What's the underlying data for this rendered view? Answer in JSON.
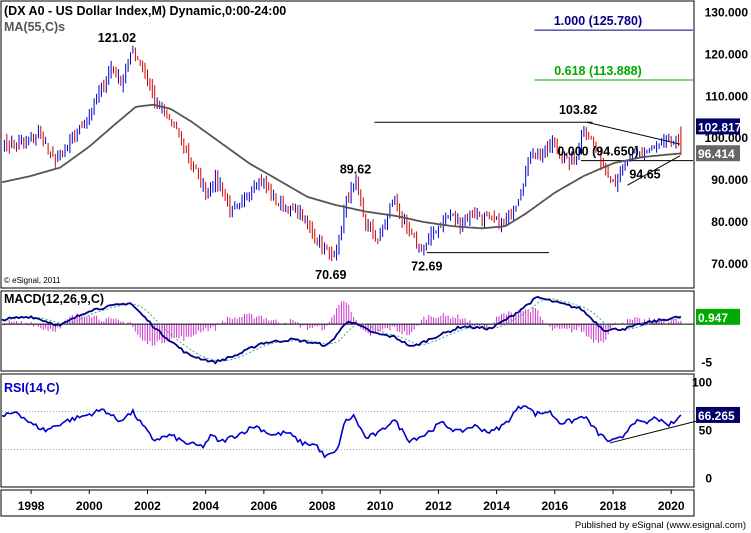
{
  "header": {
    "symbol_title": "(DX A0 - US Dollar Index,M) Dynamic,0:00-24:00",
    "ma_label": "MA(55,C)s",
    "copyright": "© eSignal, 2011",
    "footer": "Published by eSignal (www.esignal.com)"
  },
  "colors": {
    "up": "#0000cc",
    "down": "#cc0000",
    "ma": "#555555",
    "fib_blue": "#000080",
    "fib_green": "#00aa00",
    "macd": "#00008b",
    "hist": "#cc33cc",
    "rsi": "#0000cc",
    "tag_bg": "#000066",
    "tag_gray": "#666666",
    "tag_green": "#00aa00"
  },
  "chart_data": [
    {
      "type": "candlestick",
      "panel": "price",
      "title": "US Dollar Index (DX A0), monthly",
      "x_ticks": [
        "1998",
        "2000",
        "2002",
        "2004",
        "2006",
        "2008",
        "2010",
        "2012",
        "2014",
        "2016",
        "2018",
        "2020"
      ],
      "x_range": [
        1997.0,
        2020.75
      ],
      "y_ticks": [
        "70.000",
        "80.000",
        "90.000",
        "100.000",
        "110.000",
        "120.000",
        "130.000"
      ],
      "ylim": [
        64.5,
        132.5
      ],
      "close_series_anchors": [
        {
          "t": 1997.0,
          "v": 98.5
        },
        {
          "t": 1997.8,
          "v": 99.0
        },
        {
          "t": 1998.3,
          "v": 101.5
        },
        {
          "t": 1998.7,
          "v": 95.0
        },
        {
          "t": 1999.1,
          "v": 96.5
        },
        {
          "t": 1999.6,
          "v": 101.5
        },
        {
          "t": 2000.0,
          "v": 106.0
        },
        {
          "t": 2000.4,
          "v": 112.0
        },
        {
          "t": 2000.8,
          "v": 117.5
        },
        {
          "t": 2001.05,
          "v": 113.0
        },
        {
          "t": 2001.5,
          "v": 121.0
        },
        {
          "t": 2001.9,
          "v": 116.0
        },
        {
          "t": 2002.3,
          "v": 108.0
        },
        {
          "t": 2002.7,
          "v": 105.0
        },
        {
          "t": 2003.2,
          "v": 99.0
        },
        {
          "t": 2003.6,
          "v": 93.0
        },
        {
          "t": 2004.0,
          "v": 87.0
        },
        {
          "t": 2004.3,
          "v": 90.0
        },
        {
          "t": 2004.6,
          "v": 88.0
        },
        {
          "t": 2004.9,
          "v": 82.0
        },
        {
          "t": 2005.3,
          "v": 84.5
        },
        {
          "t": 2005.7,
          "v": 90.0
        },
        {
          "t": 2006.0,
          "v": 89.5
        },
        {
          "t": 2006.4,
          "v": 85.0
        },
        {
          "t": 2006.9,
          "v": 83.0
        },
        {
          "t": 2007.3,
          "v": 81.5
        },
        {
          "t": 2007.7,
          "v": 77.0
        },
        {
          "t": 2008.0,
          "v": 75.0
        },
        {
          "t": 2008.3,
          "v": 71.5
        },
        {
          "t": 2008.6,
          "v": 76.0
        },
        {
          "t": 2008.85,
          "v": 86.0
        },
        {
          "t": 2009.15,
          "v": 89.0
        },
        {
          "t": 2009.5,
          "v": 80.0
        },
        {
          "t": 2009.9,
          "v": 75.5
        },
        {
          "t": 2010.2,
          "v": 80.0
        },
        {
          "t": 2010.45,
          "v": 86.0
        },
        {
          "t": 2010.9,
          "v": 78.0
        },
        {
          "t": 2011.3,
          "v": 74.0
        },
        {
          "t": 2011.6,
          "v": 74.5
        },
        {
          "t": 2011.9,
          "v": 78.5
        },
        {
          "t": 2012.4,
          "v": 82.0
        },
        {
          "t": 2012.8,
          "v": 79.5
        },
        {
          "t": 2013.2,
          "v": 82.5
        },
        {
          "t": 2013.6,
          "v": 81.0
        },
        {
          "t": 2014.0,
          "v": 80.0
        },
        {
          "t": 2014.4,
          "v": 80.5
        },
        {
          "t": 2014.8,
          "v": 87.0
        },
        {
          "t": 2015.2,
          "v": 97.0
        },
        {
          "t": 2015.6,
          "v": 96.0
        },
        {
          "t": 2016.0,
          "v": 99.0
        },
        {
          "t": 2016.4,
          "v": 94.0
        },
        {
          "t": 2016.7,
          "v": 95.5
        },
        {
          "t": 2017.0,
          "v": 102.0
        },
        {
          "t": 2017.3,
          "v": 99.0
        },
        {
          "t": 2017.7,
          "v": 93.0
        },
        {
          "t": 2018.1,
          "v": 89.5
        },
        {
          "t": 2018.5,
          "v": 94.5
        },
        {
          "t": 2018.9,
          "v": 96.5
        },
        {
          "t": 2019.3,
          "v": 97.5
        },
        {
          "t": 2019.7,
          "v": 98.5
        },
        {
          "t": 2020.15,
          "v": 99.0
        },
        {
          "t": 2020.35,
          "v": 97.5
        }
      ],
      "ma_series_anchors": [
        {
          "t": 1997.0,
          "v": 89.5
        },
        {
          "t": 1998.0,
          "v": 91.0
        },
        {
          "t": 1999.0,
          "v": 93.0
        },
        {
          "t": 2000.0,
          "v": 98.0
        },
        {
          "t": 2001.0,
          "v": 104.0
        },
        {
          "t": 2001.6,
          "v": 107.5
        },
        {
          "t": 2002.2,
          "v": 108.0
        },
        {
          "t": 2002.8,
          "v": 107.0
        },
        {
          "t": 2003.5,
          "v": 104.0
        },
        {
          "t": 2004.5,
          "v": 99.0
        },
        {
          "t": 2005.5,
          "v": 94.0
        },
        {
          "t": 2006.5,
          "v": 90.0
        },
        {
          "t": 2007.5,
          "v": 86.0
        },
        {
          "t": 2008.5,
          "v": 84.0
        },
        {
          "t": 2009.5,
          "v": 82.5
        },
        {
          "t": 2010.5,
          "v": 81.5
        },
        {
          "t": 2011.5,
          "v": 80.0
        },
        {
          "t": 2012.5,
          "v": 79.0
        },
        {
          "t": 2013.5,
          "v": 78.5
        },
        {
          "t": 2014.3,
          "v": 79.0
        },
        {
          "t": 2015.0,
          "v": 82.0
        },
        {
          "t": 2016.0,
          "v": 87.0
        },
        {
          "t": 2017.0,
          "v": 91.0
        },
        {
          "t": 2018.0,
          "v": 94.0
        },
        {
          "t": 2019.0,
          "v": 95.5
        },
        {
          "t": 2020.35,
          "v": 96.4
        }
      ],
      "peak_labels": [
        {
          "t": 2000.95,
          "v": 121.02,
          "text": "121.02",
          "pos": "above"
        },
        {
          "t": 2009.15,
          "v": 89.62,
          "text": "89.62",
          "pos": "above"
        },
        {
          "t": 2008.3,
          "v": 70.69,
          "text": "70.69",
          "pos": "below"
        },
        {
          "t": 2011.6,
          "v": 72.69,
          "text": "72.69",
          "pos": "below"
        },
        {
          "t": 2016.8,
          "v": 103.82,
          "text": "103.82",
          "pos": "above"
        },
        {
          "t": 2019.1,
          "v": 94.65,
          "text": "94.65",
          "pos": "below"
        }
      ],
      "fib_levels": [
        {
          "label": "1.000 (125.780)",
          "value": 125.78,
          "x_from": 2015.3,
          "color": "blue"
        },
        {
          "label": "0.618 (113.888)",
          "value": 113.888,
          "x_from": 2015.3,
          "color": "green"
        },
        {
          "label": "0.000 (94.650)",
          "value": 94.65,
          "x_from": 2016.9,
          "color": "black"
        }
      ],
      "trend_lines": [
        {
          "t1": 2009.8,
          "v1": 103.82,
          "t2": 2017.3,
          "v2": 103.82
        },
        {
          "t1": 2011.6,
          "v1": 72.69,
          "t2": 2015.8,
          "v2": 72.69
        },
        {
          "t1": 2017.1,
          "v1": 103.82,
          "t2": 2020.3,
          "v2": 98.6
        },
        {
          "t1": 2018.5,
          "v1": 88.8,
          "t2": 2020.3,
          "v2": 95.8
        }
      ],
      "tags": [
        {
          "text": "102.817",
          "value": 102.817,
          "style": "dark"
        },
        {
          "text": "96.414",
          "value": 96.414,
          "style": "gray"
        }
      ]
    },
    {
      "type": "line",
      "panel": "macd",
      "title": "MACD(12,26,9,C)",
      "y_ticks": [
        "-5"
      ],
      "ylim": [
        -6,
        4.2
      ],
      "macd_anchors": [
        {
          "t": 1997.0,
          "v": 0.6
        },
        {
          "t": 1998.0,
          "v": 1.0
        },
        {
          "t": 1999.0,
          "v": -0.2
        },
        {
          "t": 2000.0,
          "v": 1.8
        },
        {
          "t": 2001.4,
          "v": 2.8
        },
        {
          "t": 2002.4,
          "v": -1.0
        },
        {
          "t": 2003.4,
          "v": -4.0
        },
        {
          "t": 2004.3,
          "v": -5.0
        },
        {
          "t": 2005.1,
          "v": -4.0
        },
        {
          "t": 2005.9,
          "v": -2.5
        },
        {
          "t": 2007.0,
          "v": -2.0
        },
        {
          "t": 2008.2,
          "v": -2.8
        },
        {
          "t": 2008.9,
          "v": 0.5
        },
        {
          "t": 2009.8,
          "v": -1.2
        },
        {
          "t": 2010.5,
          "v": -1.7
        },
        {
          "t": 2011.1,
          "v": -3.0
        },
        {
          "t": 2011.8,
          "v": -1.8
        },
        {
          "t": 2012.8,
          "v": -0.3
        },
        {
          "t": 2013.8,
          "v": -0.6
        },
        {
          "t": 2014.5,
          "v": 1.0
        },
        {
          "t": 2015.4,
          "v": 3.5
        },
        {
          "t": 2016.1,
          "v": 2.8
        },
        {
          "t": 2016.9,
          "v": 2.0
        },
        {
          "t": 2017.7,
          "v": -0.8
        },
        {
          "t": 2018.4,
          "v": -0.6
        },
        {
          "t": 2019.3,
          "v": 0.3
        },
        {
          "t": 2020.3,
          "v": 0.947
        }
      ],
      "signal_offset_months": 7,
      "tags": [
        {
          "text": "0.947",
          "value": 0.947,
          "style": "green"
        }
      ]
    },
    {
      "type": "line",
      "panel": "rsi",
      "title": "RSI(14,C)",
      "y_ticks": [
        "0",
        "50",
        "100"
      ],
      "ylim": [
        -8,
        108
      ],
      "dashed_levels": [
        30,
        70
      ],
      "rsi_anchors": [
        {
          "t": 1997.0,
          "v": 64
        },
        {
          "t": 1997.5,
          "v": 70
        },
        {
          "t": 1998.0,
          "v": 57
        },
        {
          "t": 1998.5,
          "v": 50
        },
        {
          "t": 1999.2,
          "v": 60
        },
        {
          "t": 1999.8,
          "v": 65
        },
        {
          "t": 2000.5,
          "v": 72
        },
        {
          "t": 2001.0,
          "v": 60
        },
        {
          "t": 2001.5,
          "v": 69
        },
        {
          "t": 2002.2,
          "v": 40
        },
        {
          "t": 2002.8,
          "v": 45
        },
        {
          "t": 2003.3,
          "v": 37
        },
        {
          "t": 2003.9,
          "v": 33
        },
        {
          "t": 2004.2,
          "v": 45
        },
        {
          "t": 2004.5,
          "v": 38
        },
        {
          "t": 2005.2,
          "v": 47
        },
        {
          "t": 2005.7,
          "v": 55
        },
        {
          "t": 2006.3,
          "v": 45
        },
        {
          "t": 2006.8,
          "v": 48
        },
        {
          "t": 2007.3,
          "v": 37
        },
        {
          "t": 2007.8,
          "v": 35
        },
        {
          "t": 2008.1,
          "v": 22
        },
        {
          "t": 2008.5,
          "v": 28
        },
        {
          "t": 2008.8,
          "v": 60
        },
        {
          "t": 2009.1,
          "v": 65
        },
        {
          "t": 2009.5,
          "v": 42
        },
        {
          "t": 2010.0,
          "v": 48
        },
        {
          "t": 2010.45,
          "v": 62
        },
        {
          "t": 2011.0,
          "v": 40
        },
        {
          "t": 2011.5,
          "v": 45
        },
        {
          "t": 2012.1,
          "v": 58
        },
        {
          "t": 2012.7,
          "v": 48
        },
        {
          "t": 2013.2,
          "v": 55
        },
        {
          "t": 2013.8,
          "v": 48
        },
        {
          "t": 2014.3,
          "v": 57
        },
        {
          "t": 2014.7,
          "v": 72
        },
        {
          "t": 2015.0,
          "v": 78
        },
        {
          "t": 2015.3,
          "v": 67
        },
        {
          "t": 2015.8,
          "v": 70
        },
        {
          "t": 2016.2,
          "v": 58
        },
        {
          "t": 2016.6,
          "v": 60
        },
        {
          "t": 2017.0,
          "v": 65
        },
        {
          "t": 2017.5,
          "v": 47
        },
        {
          "t": 2017.9,
          "v": 38
        },
        {
          "t": 2018.3,
          "v": 42
        },
        {
          "t": 2018.7,
          "v": 60
        },
        {
          "t": 2019.1,
          "v": 57
        },
        {
          "t": 2019.5,
          "v": 64
        },
        {
          "t": 2019.8,
          "v": 55
        },
        {
          "t": 2020.1,
          "v": 58
        },
        {
          "t": 2020.35,
          "v": 66.265
        }
      ],
      "trend_lines": [
        {
          "t1": 2017.9,
          "v1": 37,
          "t2": 2022.2,
          "v2": 70
        }
      ],
      "tags": [
        {
          "text": "66.265",
          "value": 66.265,
          "style": "dark"
        }
      ]
    }
  ]
}
